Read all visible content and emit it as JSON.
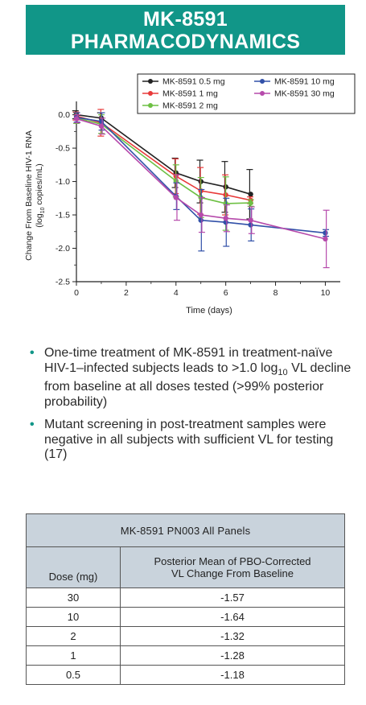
{
  "banner": {
    "line1": "MK-8591",
    "line2": "PHARMACODYNAMICS"
  },
  "chart_data": {
    "type": "line",
    "title": "",
    "xlabel": "Time (days)",
    "ylabel_line1": "Change From Baseline HIV-1 RNA",
    "ylabel_line2": "(log10 copies/mL)",
    "xlim": [
      0,
      10.6
    ],
    "ylim": [
      -2.5,
      0.2
    ],
    "x_ticks": [
      0,
      2,
      4,
      6,
      8,
      10
    ],
    "y_ticks": [
      0.0,
      -0.5,
      -1.0,
      -1.5,
      -2.0,
      -2.5
    ],
    "y_tick_labels": [
      "0.0",
      "-0.5",
      "-1.0",
      "-1.5",
      "-2.0",
      "-2.5"
    ],
    "legend_position": "top-right",
    "series": [
      {
        "name": "MK-8591 0.5 mg",
        "color": "#222222",
        "x": [
          0,
          1,
          4,
          5,
          6,
          7
        ],
        "y": [
          0.0,
          -0.05,
          -0.87,
          -1.0,
          -1.08,
          -1.19
        ],
        "err": [
          0.06,
          0.08,
          0.22,
          0.32,
          0.38,
          0.37
        ]
      },
      {
        "name": "MK-8591 1 mg",
        "color": "#e83a3a",
        "x": [
          0,
          1,
          4,
          5,
          6,
          7
        ],
        "y": [
          -0.02,
          -0.12,
          -0.92,
          -1.14,
          -1.2,
          -1.28
        ],
        "err": [
          0.06,
          0.2,
          0.26,
          0.35,
          0.3,
          0.05
        ]
      },
      {
        "name": "MK-8591 2 mg",
        "color": "#6dc043",
        "x": [
          0,
          1,
          4,
          5,
          6,
          7
        ],
        "y": [
          -0.05,
          -0.14,
          -0.99,
          -1.24,
          -1.33,
          -1.32
        ],
        "err": [
          0.08,
          0.14,
          0.24,
          0.3,
          0.4,
          0.05
        ]
      },
      {
        "name": "MK-8591 10 mg",
        "color": "#3150a8",
        "x": [
          0,
          1,
          4,
          5,
          6,
          7,
          10
        ],
        "y": [
          -0.04,
          -0.1,
          -1.22,
          -1.58,
          -1.61,
          -1.65,
          -1.77
        ],
        "err": [
          0.07,
          0.13,
          0.2,
          0.46,
          0.36,
          0.24,
          0.05
        ]
      },
      {
        "name": "MK-8591 30 mg",
        "color": "#b64aab",
        "x": [
          0,
          1,
          4,
          5,
          6,
          7,
          10
        ],
        "y": [
          -0.06,
          -0.17,
          -1.24,
          -1.5,
          -1.55,
          -1.58,
          -1.86
        ],
        "err": [
          0.06,
          0.12,
          0.34,
          0.26,
          0.2,
          0.2,
          0.43
        ]
      }
    ]
  },
  "bullets": [
    {
      "pre": "One-time treatment of MK-8591 in treatment-naïve HIV-1–infected subjects leads to >1.0 log",
      "sub": "10",
      "post": " VL decline from baseline at all doses tested (>99% posterior probability)"
    },
    {
      "pre": "Mutant screening in post-treatment samples were negative in all subjects with sufficient VL for testing (17)",
      "sub": "",
      "post": ""
    }
  ],
  "table": {
    "title": "MK-8591 PN003 All Panels",
    "col_dose": "Dose (mg)",
    "col_value_line1": "Posterior Mean of PBO-Corrected",
    "col_value_line2": "VL Change From Baseline",
    "rows": [
      {
        "dose": "30",
        "value": "-1.57"
      },
      {
        "dose": "10",
        "value": "-1.64"
      },
      {
        "dose": "2",
        "value": "-1.32"
      },
      {
        "dose": "1",
        "value": "-1.28"
      },
      {
        "dose": "0.5",
        "value": "-1.18"
      }
    ]
  }
}
